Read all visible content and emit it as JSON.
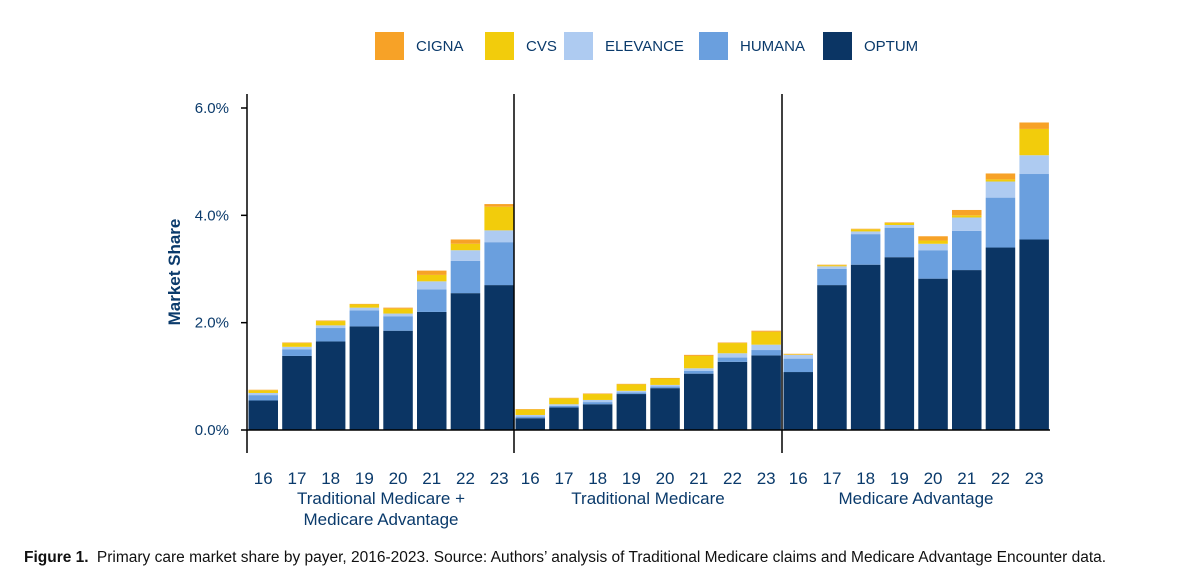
{
  "chart_data": {
    "type": "bar",
    "stacked": true,
    "ylabel": "Market Share",
    "ylim": [
      0,
      6
    ],
    "yticks": [
      "0.0%",
      "2.0%",
      "4.0%",
      "6.0%"
    ],
    "ytick_values": [
      0,
      2,
      4,
      6
    ],
    "legend": [
      "CIGNA",
      "CVS",
      "ELEVANCE",
      "HUMANA",
      "OPTUM"
    ],
    "colors": {
      "OPTUM": "#0b3564",
      "HUMANA": "#6a9fde",
      "ELEVANCE": "#aecbf1",
      "CVS": "#f2cc0c",
      "CIGNA": "#f7a227"
    },
    "stack_order": [
      "OPTUM",
      "HUMANA",
      "ELEVANCE",
      "CVS",
      "CIGNA"
    ],
    "categories": [
      "16",
      "17",
      "18",
      "19",
      "20",
      "21",
      "22",
      "23"
    ],
    "groups": [
      {
        "label_lines": [
          "Traditional Medicare +",
          "Medicare Advantage"
        ],
        "series": {
          "OPTUM": [
            0.55,
            1.38,
            1.65,
            1.93,
            1.85,
            2.2,
            2.55,
            2.7
          ],
          "HUMANA": [
            0.1,
            0.12,
            0.25,
            0.3,
            0.27,
            0.42,
            0.6,
            0.8
          ],
          "ELEVANCE": [
            0.04,
            0.05,
            0.05,
            0.05,
            0.05,
            0.15,
            0.2,
            0.22
          ],
          "CVS": [
            0.05,
            0.07,
            0.08,
            0.06,
            0.09,
            0.12,
            0.12,
            0.44
          ],
          "CIGNA": [
            0.01,
            0.01,
            0.01,
            0.01,
            0.02,
            0.08,
            0.08,
            0.05
          ]
        }
      },
      {
        "label_lines": [
          "Traditional Medicare"
        ],
        "series": {
          "OPTUM": [
            0.22,
            0.42,
            0.48,
            0.67,
            0.78,
            1.05,
            1.27,
            1.39
          ],
          "HUMANA": [
            0.03,
            0.03,
            0.04,
            0.03,
            0.03,
            0.05,
            0.08,
            0.1
          ],
          "ELEVANCE": [
            0.03,
            0.03,
            0.04,
            0.03,
            0.03,
            0.05,
            0.08,
            0.1
          ],
          "CVS": [
            0.1,
            0.11,
            0.11,
            0.12,
            0.12,
            0.23,
            0.19,
            0.24
          ],
          "CIGNA": [
            0.01,
            0.01,
            0.01,
            0.01,
            0.01,
            0.02,
            0.01,
            0.02
          ]
        }
      },
      {
        "label_lines": [
          "Medicare Advantage"
        ],
        "series": {
          "OPTUM": [
            1.08,
            2.7,
            3.08,
            3.22,
            2.82,
            2.98,
            3.4,
            3.55
          ],
          "HUMANA": [
            0.25,
            0.3,
            0.57,
            0.55,
            0.53,
            0.73,
            0.93,
            1.22
          ],
          "ELEVANCE": [
            0.07,
            0.05,
            0.05,
            0.05,
            0.12,
            0.25,
            0.3,
            0.35
          ],
          "CVS": [
            0.01,
            0.02,
            0.04,
            0.04,
            0.06,
            0.04,
            0.04,
            0.49
          ],
          "CIGNA": [
            0.01,
            0.01,
            0.01,
            0.01,
            0.08,
            0.1,
            0.11,
            0.12
          ]
        }
      }
    ]
  },
  "caption": {
    "label": "Figure 1.",
    "text": "Primary care market share by payer, 2016-2023. Source: Authors’ analysis of Traditional Medicare claims and Medicare Advantage Encounter data."
  }
}
